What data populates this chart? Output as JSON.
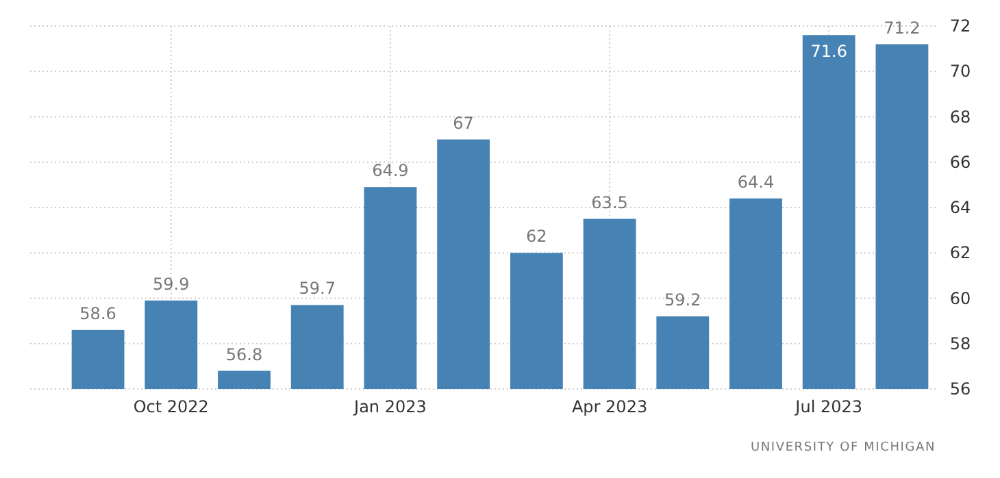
{
  "chart_data": {
    "type": "bar",
    "categories": [
      null,
      "Oct 2022",
      null,
      null,
      "Jan 2023",
      null,
      null,
      "Apr 2023",
      null,
      null,
      "Jul 2023",
      null
    ],
    "values": [
      58.6,
      59.9,
      56.8,
      59.7,
      64.9,
      67,
      62,
      63.5,
      59.2,
      64.4,
      71.6,
      71.2
    ],
    "color": "#4682b4",
    "ylim": [
      56,
      72
    ],
    "yticks": [
      56,
      58,
      60,
      62,
      64,
      66,
      68,
      70,
      72
    ],
    "grid": true,
    "data_labels": true,
    "annotations": [
      "UNIVERSITY OF MICHIGAN"
    ]
  }
}
